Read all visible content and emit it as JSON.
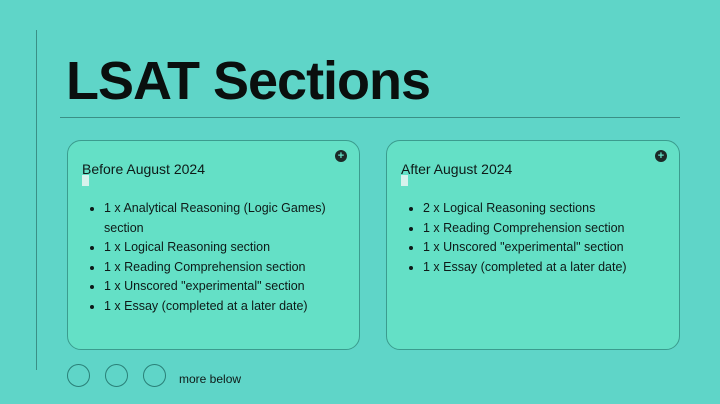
{
  "title": "LSAT Sections",
  "cards": [
    {
      "heading": "Before August 2024",
      "items": [
        "1 x Analytical Reasoning (Logic Games) section",
        "1 x Logical Reasoning section",
        "1 x Reading Comprehension section",
        "1 x Unscored \"experimental\" section",
        "1 x Essay (completed at a later date)"
      ]
    },
    {
      "heading": "After August 2024",
      "items": [
        "2 x Logical Reasoning sections",
        "1 x Reading Comprehension section",
        "1 x Unscored \"experimental\" section",
        "1 x Essay (completed at a later date)"
      ]
    }
  ],
  "footer": {
    "more_label": "more below",
    "plus_icon": "+"
  },
  "colors": {
    "background": "#5fd5c8",
    "card": "#64e0c6",
    "text": "#0a0f0e"
  }
}
